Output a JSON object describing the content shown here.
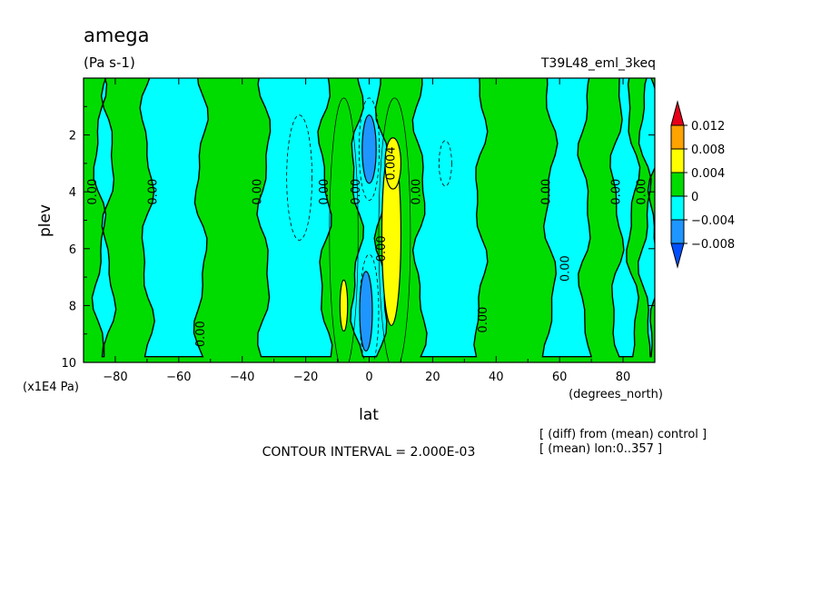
{
  "chart_data": {
    "type": "heatmap",
    "title": "amega",
    "units": "(Pa s-1)",
    "subtitle": "T39L48_eml_3keq",
    "xlabel": "lat",
    "x_unit": "(degrees_north)",
    "ylabel": "plev",
    "y_unit": "(x1E4 Pa)",
    "xlim": [
      -90,
      90
    ],
    "ylim": [
      10,
      0
    ],
    "x_ticks": [
      -80,
      -60,
      -40,
      -20,
      0,
      20,
      40,
      60,
      80
    ],
    "y_ticks": [
      2,
      4,
      6,
      8,
      10
    ],
    "contour_interval": "CONTOUR INTERVAL = 2.000E-03",
    "notes": [
      "[ (diff) from (mean) control ]",
      "[ (mean) lon:0..357 ]"
    ],
    "colorbar": {
      "labels": [
        "0.012",
        "0.008",
        "0.004",
        "0",
        "−0.004",
        "−0.008"
      ],
      "colors": [
        "#e8001a",
        "#ffa300",
        "#ffff00",
        "#00dc00",
        "#00ffff",
        "#1e96ff",
        "#0050ff"
      ]
    },
    "bands": [
      {
        "x0": -90,
        "x1": -85,
        "lev": "pos"
      },
      {
        "x0": -85,
        "x1": -82,
        "lev": "neg"
      },
      {
        "x0": -82,
        "x1": -70,
        "lev": "pos"
      },
      {
        "x0": -70,
        "x1": -53,
        "lev": "neg"
      },
      {
        "x0": -53,
        "x1": -33,
        "lev": "pos"
      },
      {
        "x0": -33,
        "x1": -14,
        "lev": "neg"
      },
      {
        "x0": -14,
        "x1": -4,
        "lev": "pos"
      },
      {
        "x0": -4,
        "x1": 4,
        "lev": "neg"
      },
      {
        "x0": 4,
        "x1": 16,
        "lev": "pos"
      },
      {
        "x0": 16,
        "x1": 35,
        "lev": "neg"
      },
      {
        "x0": 35,
        "x1": 57,
        "lev": "pos"
      },
      {
        "x0": 57,
        "x1": 68,
        "lev": "neg"
      },
      {
        "x0": 68,
        "x1": 78,
        "lev": "pos"
      },
      {
        "x0": 78,
        "x1": 83,
        "lev": "neg"
      },
      {
        "x0": 83,
        "x1": 87,
        "lev": "pos"
      },
      {
        "x0": 87,
        "x1": 90,
        "lev": "neg"
      }
    ],
    "patches": [
      {
        "lat": 7,
        "plev": 5.5,
        "rx": 3.0,
        "ry": 3.2,
        "lev": "pos2"
      },
      {
        "lat": 7.5,
        "plev": 3.0,
        "rx": 2.5,
        "ry": 0.9,
        "lev": "pos2"
      },
      {
        "lat": -8,
        "plev": 8.0,
        "rx": 1.2,
        "ry": 0.9,
        "lev": "pos2"
      },
      {
        "lat": 0,
        "plev": 2.5,
        "rx": 2.2,
        "ry": 1.2,
        "lev": "neg2"
      },
      {
        "lat": -1,
        "plev": 8.2,
        "rx": 2.0,
        "ry": 1.4,
        "lev": "neg2"
      }
    ],
    "contour_labels": [
      {
        "text": "0.00",
        "lat": -87,
        "plev": 4.0
      },
      {
        "text": "0.00",
        "lat": -68,
        "plev": 4.0
      },
      {
        "text": "0.00",
        "lat": -53,
        "plev": 9.0
      },
      {
        "text": "0.00",
        "lat": -35,
        "plev": 4.0
      },
      {
        "text": "0.00",
        "lat": -14,
        "plev": 4.0
      },
      {
        "text": "0.00",
        "lat": -4,
        "plev": 4.0
      },
      {
        "text": "0.004",
        "lat": 7,
        "plev": 3.0
      },
      {
        "text": "0.00",
        "lat": 4,
        "plev": 6.0
      },
      {
        "text": "0.00",
        "lat": 15,
        "plev": 4.0
      },
      {
        "text": "0.00",
        "lat": 36,
        "plev": 8.5
      },
      {
        "text": "0.00",
        "lat": 56,
        "plev": 4.0
      },
      {
        "text": "0.00",
        "lat": 62,
        "plev": 6.7
      },
      {
        "text": "0.00",
        "lat": 78,
        "plev": 4.0
      },
      {
        "text": "0.00",
        "lat": 86,
        "plev": 4.0
      }
    ]
  }
}
